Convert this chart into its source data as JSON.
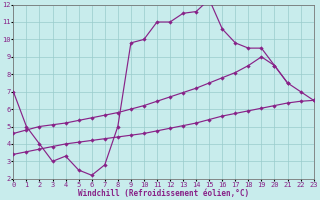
{
  "bg_color": "#c8ecec",
  "grid_color": "#99cccc",
  "line_color": "#882288",
  "xlabel": "Windchill (Refroidissement éolien,°C)",
  "xlim": [
    0,
    23
  ],
  "ylim": [
    2,
    12
  ],
  "xticks": [
    0,
    1,
    2,
    3,
    4,
    5,
    6,
    7,
    8,
    9,
    10,
    11,
    12,
    13,
    14,
    15,
    16,
    17,
    18,
    19,
    20,
    21,
    22,
    23
  ],
  "yticks": [
    2,
    3,
    4,
    5,
    6,
    7,
    8,
    9,
    10,
    11,
    12
  ],
  "s1_x": [
    0,
    1,
    2,
    3,
    4,
    5,
    6,
    7,
    8,
    9,
    10,
    11,
    12,
    13,
    14,
    15,
    16,
    17,
    18,
    19,
    20,
    21
  ],
  "s1_y": [
    7.0,
    5.0,
    4.0,
    3.0,
    3.3,
    2.5,
    2.2,
    2.8,
    5.0,
    9.8,
    10.0,
    11.0,
    11.0,
    11.5,
    11.6,
    12.3,
    10.6,
    9.8,
    9.5,
    9.5,
    8.5,
    7.5
  ],
  "s2_x": [
    0,
    1,
    2,
    3,
    4,
    5,
    6,
    7,
    8,
    9,
    10,
    11,
    12,
    13,
    14,
    15,
    16,
    17,
    18,
    19,
    20,
    21,
    22,
    23
  ],
  "s2_y": [
    4.6,
    4.8,
    5.0,
    5.1,
    5.2,
    5.35,
    5.5,
    5.65,
    5.8,
    6.0,
    6.2,
    6.45,
    6.7,
    6.95,
    7.2,
    7.5,
    7.8,
    8.1,
    8.5,
    9.0,
    8.5,
    7.5,
    7.0,
    6.5
  ],
  "s3_x": [
    0,
    1,
    2,
    3,
    4,
    5,
    6,
    7,
    8,
    9,
    10,
    11,
    12,
    13,
    14,
    15,
    16,
    17,
    18,
    19,
    20,
    21,
    22,
    23
  ],
  "s3_y": [
    3.4,
    3.55,
    3.7,
    3.85,
    4.0,
    4.1,
    4.2,
    4.3,
    4.4,
    4.5,
    4.6,
    4.75,
    4.9,
    5.05,
    5.2,
    5.4,
    5.6,
    5.75,
    5.9,
    6.05,
    6.2,
    6.35,
    6.45,
    6.5
  ],
  "tick_fontsize": 5.0,
  "xlabel_fontsize": 5.5,
  "marker_size": 2.2,
  "linewidth": 0.85
}
